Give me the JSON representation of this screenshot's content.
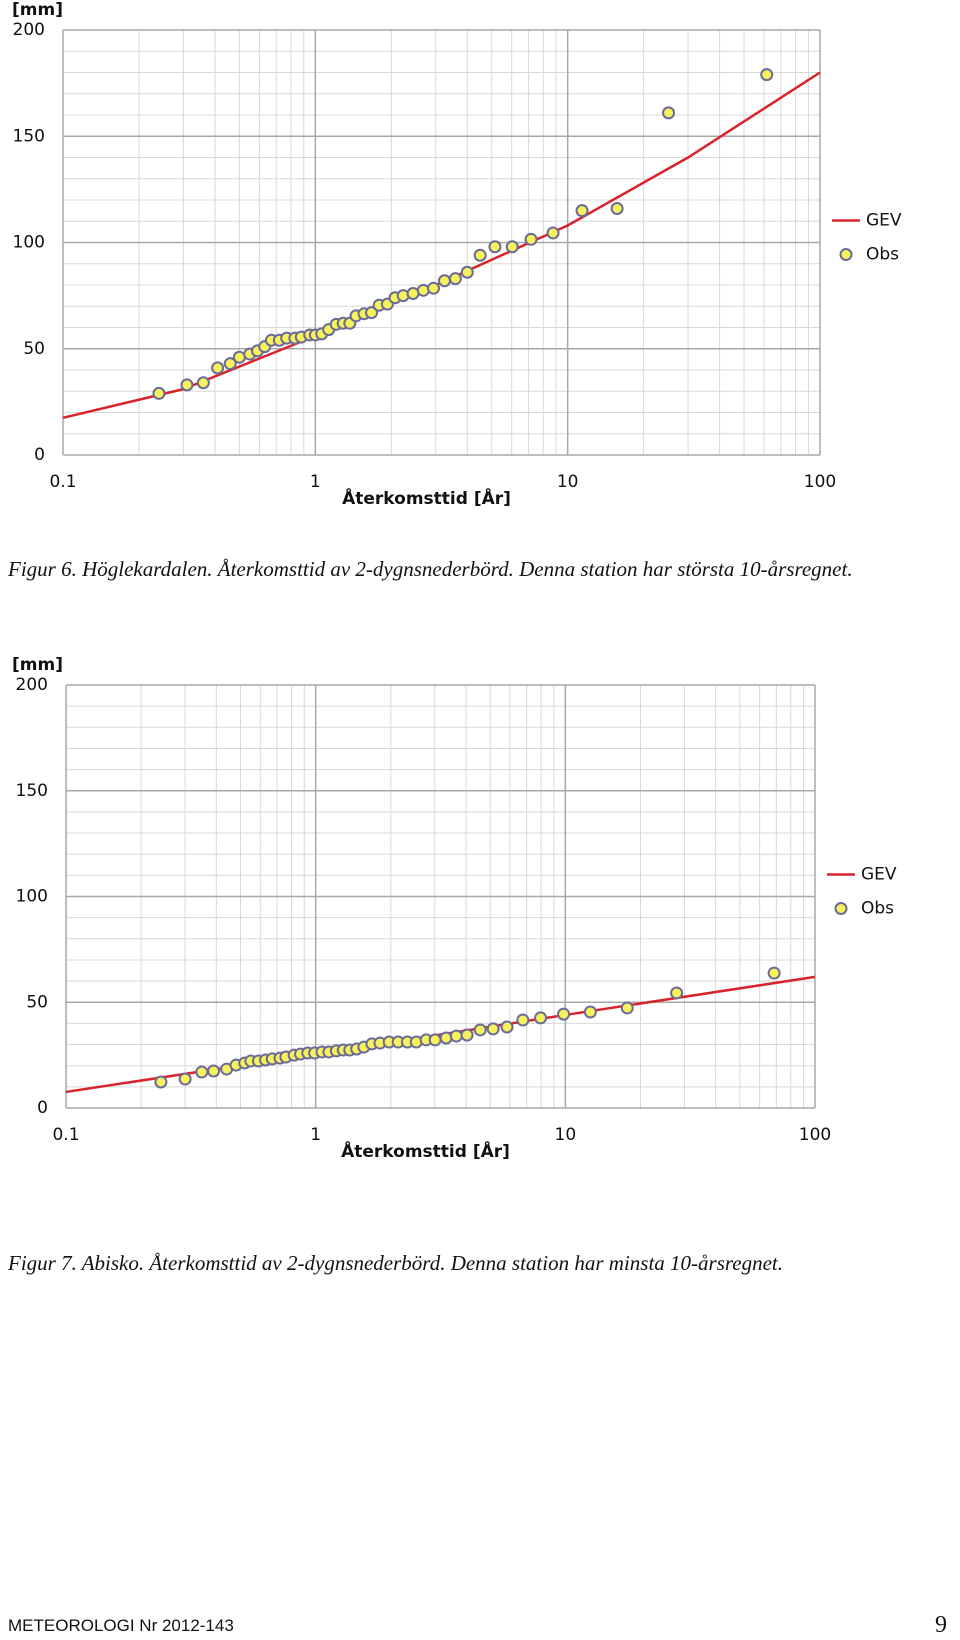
{
  "chart_data": [
    {
      "type": "scatter",
      "ylabel": "[mm]",
      "xlabel": "Återkomsttid [År]",
      "xscale": "log",
      "xlim": [
        0.1,
        100
      ],
      "xticks": [
        0.1,
        1,
        10,
        100
      ],
      "ylim": [
        0,
        200
      ],
      "yticks": [
        0,
        50,
        100,
        150,
        200
      ],
      "grid": true,
      "minor_grid": true,
      "legend": "right",
      "series": [
        {
          "name": "GEV",
          "type": "line",
          "color": "#d9232a",
          "x": [
            0.1,
            0.3,
            1,
            3,
            10,
            30,
            100
          ],
          "values": [
            17.5,
            31,
            56,
            80,
            108,
            140,
            180
          ]
        },
        {
          "name": "Obs",
          "type": "marker",
          "color": "#f7f25c",
          "x": [
            0.24,
            0.31,
            0.36,
            0.41,
            0.46,
            0.5,
            0.55,
            0.59,
            0.63,
            0.67,
            0.72,
            0.77,
            0.83,
            0.88,
            0.95,
            1.0,
            1.06,
            1.13,
            1.21,
            1.29,
            1.37,
            1.45,
            1.56,
            1.67,
            1.79,
            1.93,
            2.07,
            2.23,
            2.44,
            2.68,
            2.94,
            3.25,
            3.59,
            4.0,
            4.5,
            5.15,
            6.03,
            7.16,
            8.75,
            11.4,
            15.7,
            25.1,
            61.5
          ],
          "values": [
            29,
            33,
            34,
            41,
            43,
            46,
            47.5,
            49,
            51,
            54,
            54,
            55,
            55,
            55.5,
            56.5,
            56.5,
            57,
            59,
            61.5,
            62,
            62,
            65.5,
            66.5,
            67,
            70.5,
            71,
            74,
            75,
            76,
            77.5,
            78.5,
            82,
            83,
            86,
            94,
            98,
            98,
            101.5,
            104.5,
            115,
            116,
            161,
            179
          ]
        }
      ]
    },
    {
      "type": "scatter",
      "ylabel": "[mm]",
      "xlabel": "Återkomsttid [År]",
      "xscale": "log",
      "xlim": [
        0.1,
        100
      ],
      "xticks": [
        0.1,
        1,
        10,
        100
      ],
      "ylim": [
        0,
        200
      ],
      "yticks": [
        0,
        50,
        100,
        150,
        200
      ],
      "grid": true,
      "minor_grid": true,
      "legend": "right",
      "series": [
        {
          "name": "GEV",
          "type": "line",
          "color": "#d9232a",
          "x": [
            0.1,
            1,
            10,
            100
          ],
          "values": [
            7.6,
            25.5,
            44,
            62
          ]
        },
        {
          "name": "Obs",
          "type": "marker",
          "color": "#f7f25c",
          "x": [
            0.24,
            0.3,
            0.35,
            0.39,
            0.44,
            0.48,
            0.52,
            0.55,
            0.59,
            0.63,
            0.67,
            0.72,
            0.76,
            0.82,
            0.87,
            0.93,
            0.99,
            1.06,
            1.13,
            1.21,
            1.29,
            1.37,
            1.46,
            1.56,
            1.68,
            1.81,
            1.97,
            2.14,
            2.33,
            2.53,
            2.77,
            3.01,
            3.33,
            3.66,
            4.04,
            4.56,
            5.14,
            5.84,
            6.76,
            7.96,
            9.84,
            12.6,
            17.7,
            27.9,
            68.6
          ],
          "values": [
            12.3,
            13.7,
            17,
            17.5,
            18.4,
            20.3,
            21.3,
            22.2,
            22.2,
            22.7,
            23.2,
            23.6,
            24.1,
            25,
            25.5,
            26,
            26,
            26.5,
            26.5,
            27,
            27.4,
            27.4,
            27.9,
            28.8,
            30.3,
            30.7,
            31.2,
            31.2,
            31.2,
            31.2,
            32.2,
            32.2,
            33.1,
            34,
            34.5,
            36.9,
            37.4,
            38.3,
            41.6,
            42.6,
            44.4,
            45.4,
            47.3,
            54.4,
            63.8
          ]
        }
      ]
    }
  ],
  "captions": [
    "Figur 6. Höglekardalen. Återkomsttid av 2-dygnsnederbörd. Denna station har största 10-årsregnet.",
    "Figur 7. Abisko. Återkomsttid av 2-dygnsnederbörd. Denna station har minsta 10-årsregnet."
  ],
  "footer": {
    "text": "METEOROLOGI Nr 2012-143",
    "page": "9"
  }
}
